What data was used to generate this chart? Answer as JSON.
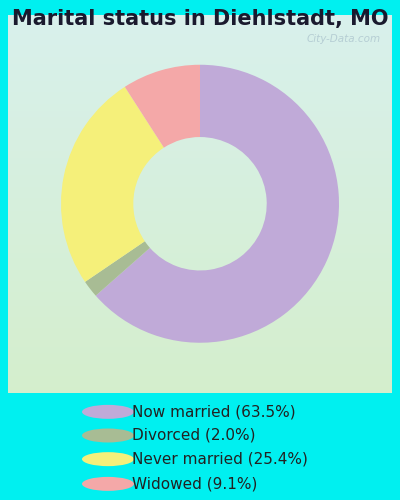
{
  "title": "Marital status in Diehlstadt, MO",
  "slices": [
    63.5,
    2.0,
    25.4,
    9.1
  ],
  "labels": [
    "Now married (63.5%)",
    "Divorced (2.0%)",
    "Never married (25.4%)",
    "Widowed (9.1%)"
  ],
  "colors": [
    "#c0aad8",
    "#a8bc94",
    "#f5f07a",
    "#f4a8a8"
  ],
  "outer_bg": "#00f0f0",
  "chart_bg_topleft": "#d8f0ec",
  "chart_bg_bottomright": "#d4eecc",
  "title_fontsize": 15,
  "legend_fontsize": 11,
  "donut_width": 0.52,
  "start_angle": 90,
  "watermark": "City-Data.com"
}
